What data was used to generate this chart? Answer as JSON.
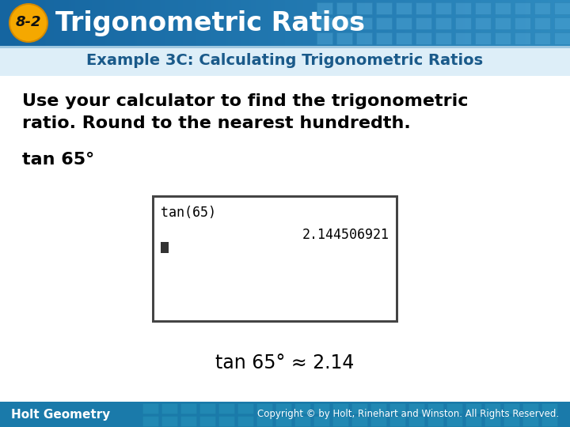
{
  "title_badge": "8-2",
  "title_text": "Trigonometric Ratios",
  "subtitle": "Example 3C: Calculating Trigonometric Ratios",
  "body_line1": "Use your calculator to find the trigonometric",
  "body_line2": "ratio. Round to the nearest hundredth.",
  "tan_label": "tan 65°",
  "calc_line1": "tan(65)",
  "calc_line2": "      2.144506921",
  "result_text": "tan 65° ≈ 2.14",
  "footer_left": "Holt Geometry",
  "footer_right": "Copyright © by Holt, Rinehart and Winston. All Rights Reserved.",
  "header_bg_left": "#1565a0",
  "header_bg_right": "#2e8bc0",
  "header_tile_color": "#3a96cc",
  "badge_bg": "#f5a800",
  "badge_border": "#d48a00",
  "title_color": "#ffffff",
  "subtitle_color": "#1a5a8a",
  "subtitle_bg": "#ddeef8",
  "body_color": "#000000",
  "footer_bg": "#1a7aaa",
  "footer_color": "#ffffff",
  "calc_bg": "#ffffff",
  "calc_border": "#555555",
  "calc_text": "#000000",
  "body_bg": "#ffffff",
  "result_color": "#000000",
  "cursor_color": "#333333"
}
